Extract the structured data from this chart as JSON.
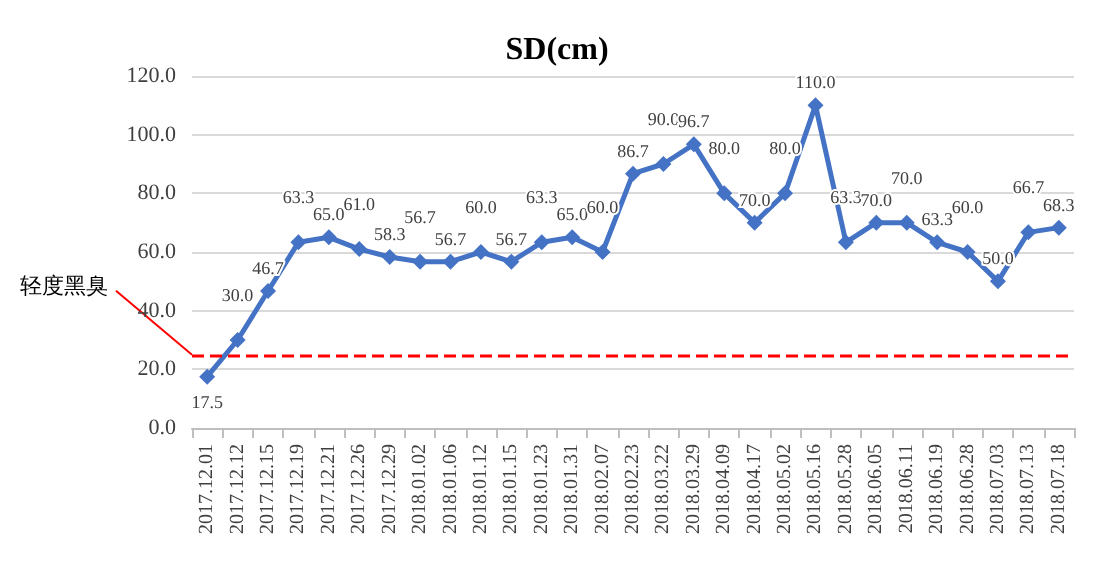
{
  "chart_data": {
    "type": "line",
    "title": "SD(cm)",
    "categories": [
      "2017.12.01",
      "2017.12.12",
      "2017.12.15",
      "2017.12.19",
      "2017.12.21",
      "2017.12.26",
      "2017.12.29",
      "2018.01.02",
      "2018.01.06",
      "2018.01.12",
      "2018.01.15",
      "2018.01.23",
      "2018.01.31",
      "2018.02.07",
      "2018.02.23",
      "2018.03.22",
      "2018.03.29",
      "2018.04.09",
      "2018.04.17",
      "2018.05.02",
      "2018.05.16",
      "2018.05.28",
      "2018.06.05",
      "2018.06.11",
      "2018.06.19",
      "2018.06.28",
      "2018.07.03",
      "2018.07.13",
      "2018.07.18"
    ],
    "series": [
      {
        "color": "#4472c4",
        "values": [
          17.5,
          30,
          46.7,
          63.3,
          65,
          61,
          58.3,
          56.7,
          56.7,
          60,
          56.7,
          63.3,
          65,
          60,
          86.7,
          90,
          96.7,
          80,
          70,
          80,
          110,
          63.3,
          70,
          70,
          63.3,
          60,
          50,
          66.7,
          68.3
        ],
        "value_labels": [
          "17.5",
          "30.0",
          "46.7",
          "63.3",
          "65.0",
          "61.0",
          "58.3",
          "56.7",
          "56.7",
          "60.0",
          "56.7",
          "63.3",
          "65.0",
          "60.0",
          "86.7",
          "90.0",
          "96.7",
          "80.0",
          "70.0",
          "80.0",
          "110.0",
          "63.3",
          "70.0",
          "70.0",
          "63.3",
          "60.0",
          "50.0",
          "66.7",
          "68.3"
        ]
      }
    ],
    "ylim": [
      0,
      120
    ],
    "yticks": [
      {
        "value": 0,
        "label": "0.0"
      },
      {
        "value": 20,
        "label": "20.0"
      },
      {
        "value": 40,
        "label": "40.0"
      },
      {
        "value": 60,
        "label": "60.0"
      },
      {
        "value": 80,
        "label": "80.0"
      },
      {
        "value": 100,
        "label": "100.0"
      },
      {
        "value": 120,
        "label": "120.0"
      }
    ],
    "ref_lines": [
      {
        "axis": "y",
        "value": 25,
        "label": "轻度黑臭",
        "color": "#ff0000",
        "line_style": "dashed"
      }
    ],
    "grid": "y",
    "marker": "diamond",
    "line_style": "solid"
  }
}
